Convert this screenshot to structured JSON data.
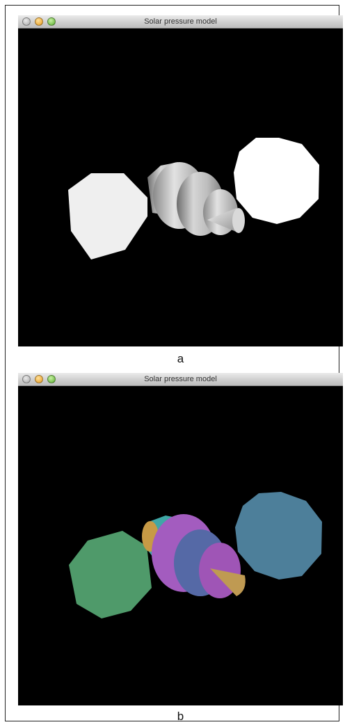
{
  "panels": [
    {
      "window_title": "Solar pressure model",
      "caption": "a",
      "render_mode": "shaded-grey",
      "colors": {
        "background": "#000000",
        "left_panel": "#efefef",
        "right_panel": "#ffffff",
        "body": "#b8b8b8",
        "cone": "#d0d0d0"
      }
    },
    {
      "window_title": "Solar pressure model",
      "caption": "b",
      "render_mode": "flat-colored-parts",
      "colors": {
        "background": "#000000",
        "left_panel": "#4f9a6a",
        "right_panel": "#4d7f9a",
        "body_rear": "#3fa7a6",
        "body_ring_front": "#a35cbf",
        "body_middle": "#5569a6",
        "body_ring_rear": "#9f55b6",
        "cone": "#bf9a52"
      }
    }
  ],
  "window_controls": {
    "close": "close-icon",
    "minimize": "minimize-icon",
    "zoom": "zoom-icon"
  }
}
